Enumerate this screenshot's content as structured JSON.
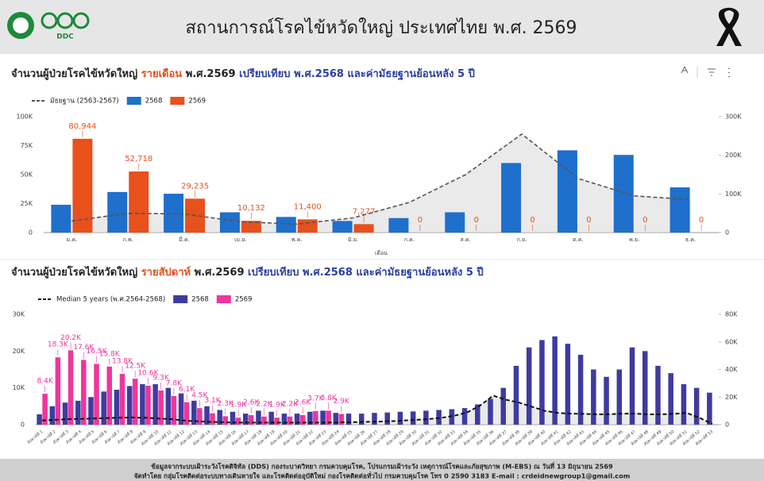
{
  "header": {
    "logo_text": "DDC",
    "title": "สถานการณ์โรคไข้หวัดใหญ่ ประเทศไทย พ.ศ. 2569"
  },
  "chart_data": [
    {
      "type": "bar",
      "title": [
        {
          "text": "จำนวนผู้ป่วยโรคไข้หวัดใหญ่ ",
          "color": "#222222"
        },
        {
          "text": "รายเดือน",
          "color": "#e8501c"
        },
        {
          "text": " พ.ศ.2569 ",
          "color": "#222222"
        },
        {
          "text": "เปรียบเทียบ พ.ศ.2568 และค่ามัธยฐานย้อนหลัง 5 ปี",
          "color": "#2b3f9e"
        }
      ],
      "categories": [
        "ม.ค.",
        "ก.พ.",
        "มี.ค.",
        "เม.ย.",
        "พ.ค.",
        "มิ.ย.",
        "ก.ค.",
        "ส.ค.",
        "ก.ย.",
        "ต.ค.",
        "พ.ย.",
        "ธ.ค."
      ],
      "xlabel": "เดือน",
      "series": [
        {
          "name": "มัธยฐาน (2563-2567)",
          "type": "line",
          "axis": "y2",
          "color": "#555555",
          "values": [
            30000,
            50000,
            48000,
            28000,
            22000,
            38000,
            78000,
            150000,
            255000,
            140000,
            95000,
            85000
          ]
        },
        {
          "name": "2568",
          "type": "bar",
          "color": "#1f6fcc",
          "values": [
            24000,
            35000,
            33500,
            17500,
            13500,
            10000,
            12500,
            17500,
            60000,
            71000,
            67000,
            39000
          ]
        },
        {
          "name": "2569",
          "type": "bar",
          "color": "#e8501c",
          "values": [
            80944,
            52718,
            29235,
            10132,
            11400,
            7277,
            0,
            0,
            0,
            0,
            0,
            0
          ],
          "value_labels": [
            "80,944",
            "52,718",
            "29,235",
            "10,132",
            "11,400",
            "7,277",
            "0",
            "0",
            "0",
            "0",
            "0",
            "0"
          ]
        }
      ],
      "ylim": [
        0,
        100000
      ],
      "yticks": [
        0,
        {
          "value": 25000,
          "label": "25K"
        },
        {
          "value": 50000,
          "label": "50K"
        },
        {
          "value": 75000,
          "label": "75K"
        },
        {
          "value": 100000,
          "label": "100K"
        }
      ],
      "y2lim": [
        0,
        300000
      ],
      "y2ticks": [
        0,
        {
          "value": 100000,
          "label": "100K"
        },
        {
          "value": 200000,
          "label": "200K"
        },
        {
          "value": 300000,
          "label": "300K"
        }
      ]
    },
    {
      "type": "bar",
      "title": [
        {
          "text": "จำนวนผู้ป่วยโรคไข้หวัดใหญ่ ",
          "color": "#222222"
        },
        {
          "text": "รายสัปดาห์",
          "color": "#e8501c"
        },
        {
          "text": " พ.ศ.2569 ",
          "color": "#222222"
        },
        {
          "text": "เปรียบเทียบ พ.ศ.2568 และค่ามัธยฐานย้อนหลัง 5 ปี",
          "color": "#2b3f9e"
        }
      ],
      "categories": [
        "สัปดาห์ที่ 1",
        "สัปดาห์ที่ 2",
        "สัปดาห์ที่ 3",
        "สัปดาห์ที่ 4",
        "สัปดาห์ที่ 5",
        "สัปดาห์ที่ 6",
        "สัปดาห์ที่ 7",
        "สัปดาห์ที่ 8",
        "สัปดาห์ที่ 9",
        "สัปดาห์ที่ 10",
        "สัปดาห์ที่ 11",
        "สัปดาห์ที่ 12",
        "สัปดาห์ที่ 13",
        "สัปดาห์ที่ 14",
        "สัปดาห์ที่ 15",
        "สัปดาห์ที่ 16",
        "สัปดาห์ที่ 17",
        "สัปดาห์ที่ 18",
        "สัปดาห์ที่ 19",
        "สัปดาห์ที่ 20",
        "สัปดาห์ที่ 21",
        "สัปดาห์ที่ 22",
        "สัปดาห์ที่ 23",
        "สัปดาห์ที่ 24",
        "สัปดาห์ที่ 25",
        "สัปดาห์ที่ 26",
        "สัปดาห์ที่ 27",
        "สัปดาห์ที่ 28",
        "สัปดาห์ที่ 29",
        "สัปดาห์ที่ 30",
        "สัปดาห์ที่ 31",
        "สัปดาห์ที่ 32",
        "สัปดาห์ที่ 33",
        "สัปดาห์ที่ 34",
        "สัปดาห์ที่ 35",
        "สัปดาห์ที่ 36",
        "สัปดาห์ที่ 37",
        "สัปดาห์ที่ 38",
        "สัปดาห์ที่ 39",
        "สัปดาห์ที่ 40",
        "สัปดาห์ที่ 41",
        "สัปดาห์ที่ 42",
        "สัปดาห์ที่ 43",
        "สัปดาห์ที่ 44",
        "สัปดาห์ที่ 45",
        "สัปดาห์ที่ 46",
        "สัปดาห์ที่ 47",
        "สัปดาห์ที่ 48",
        "สัปดาห์ที่ 49",
        "สัปดาห์ที่ 50",
        "สัปดาห์ที่ 51",
        "สัปดาห์ที่ 52",
        "สัปดาห์ที่ 53"
      ],
      "series": [
        {
          "name": "Median 5 years (พ.ศ.2564-2568)",
          "type": "line",
          "axis": "y2",
          "color": "#111111",
          "values": [
            3000,
            3500,
            4000,
            4200,
            4500,
            4800,
            5000,
            5200,
            5000,
            4500,
            4000,
            3000,
            2500,
            2000,
            1800,
            1500,
            1500,
            1500,
            1500,
            1500,
            1500,
            1500,
            1500,
            1600,
            1800,
            2000,
            2200,
            2500,
            3000,
            3500,
            4000,
            5000,
            6500,
            9000,
            14000,
            21000,
            18000,
            16000,
            13000,
            10000,
            8500,
            8000,
            7800,
            7500,
            7500,
            8000,
            8000,
            7500,
            7500,
            7800,
            8500,
            5000,
            500
          ]
        },
        {
          "name": "2568",
          "type": "bar",
          "color": "#3e3ba0",
          "values": [
            2800,
            5000,
            6000,
            6500,
            7500,
            9000,
            9500,
            10500,
            11000,
            11000,
            10000,
            8500,
            6500,
            5000,
            4000,
            3500,
            3000,
            3800,
            3500,
            3000,
            3000,
            3500,
            3800,
            3200,
            3000,
            3000,
            3200,
            3300,
            3500,
            3600,
            3800,
            4000,
            4200,
            4500,
            5500,
            7000,
            10000,
            16000,
            21000,
            23000,
            24000,
            22000,
            19000,
            15000,
            13000,
            15000,
            21000,
            20000,
            16000,
            14000,
            11000,
            10000,
            8700
          ]
        },
        {
          "name": "2569",
          "type": "bar",
          "color": "#f0359d",
          "values": [
            8400,
            18300,
            20200,
            17600,
            16500,
            15800,
            13800,
            12500,
            10600,
            9300,
            7800,
            6100,
            4500,
            3100,
            2300,
            1900,
            2600,
            2200,
            1900,
            2200,
            2600,
            3700,
            3800,
            2900,
            null,
            null,
            null,
            null,
            null,
            null,
            null,
            null,
            null,
            null,
            null,
            null,
            null,
            null,
            null,
            null,
            null,
            null,
            null,
            null,
            null,
            null,
            null,
            null,
            null,
            null,
            null,
            null,
            null
          ],
          "value_labels": [
            "8.4K",
            "18.3K",
            "20.2K",
            "17.6K",
            "16.5K",
            "15.8K",
            "13.8K",
            "12.5K",
            "10.6K",
            "9.3K",
            "7.8K",
            "6.1K",
            "4.5K",
            "3.1K",
            "2.3K",
            "1.9K",
            "2.6K",
            "2.2K",
            "1.9K",
            "2.2K",
            "2.6K",
            "3.7K",
            "3.8K",
            "2.9K",
            null,
            null,
            null,
            null,
            null,
            null,
            null,
            null,
            null,
            null,
            null,
            null,
            null,
            null,
            null,
            null,
            null,
            null,
            null,
            null,
            null,
            null,
            null,
            null,
            null,
            null,
            null,
            null,
            null
          ]
        }
      ],
      "ylim": [
        0,
        30000
      ],
      "yticks": [
        0,
        {
          "value": 10000,
          "label": "10K"
        },
        {
          "value": 20000,
          "label": "20K"
        },
        {
          "value": 30000,
          "label": "30K"
        }
      ],
      "y2lim": [
        0,
        80000
      ],
      "y2ticks": [
        0,
        {
          "value": 20000,
          "label": "20K"
        },
        {
          "value": 40000,
          "label": "40K"
        },
        {
          "value": 60000,
          "label": "60K"
        },
        {
          "value": 80000,
          "label": "80K"
        }
      ]
    }
  ],
  "footer": {
    "lines": [
      "ข้อมูลจากระบบเฝ้าระวังโรคดิจิทัล (DDS) กองระบาดวิทยา กรมควบคุมโรค, โปรแกรมเฝ้าระวัง เหตุการณ์โรคและภัยสุขภาพ (M-EBS) ณ วันที่ 13 มิถุนายน 2569",
      "จัดทำโดย กลุ่มโรคติดต่อระบบทางเดินหายใจ และโรคติดต่ออุบัติใหม่ กองโรคติดต่อทั่วไป กรมควบคุมโรค โทร 0 2590 3183 E-mail : crdeidnewgroup1@gmail.com"
    ]
  }
}
